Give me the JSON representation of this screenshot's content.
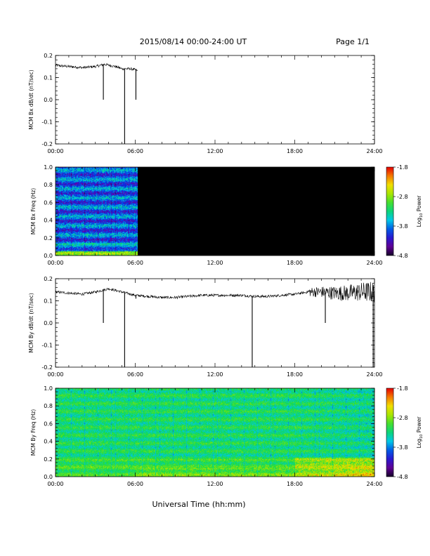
{
  "header": {
    "date_range": "2015/08/14  00:00-24:00 UT",
    "page": "Page 1/1"
  },
  "xaxis_label": "Universal Time (hh:mm)",
  "colorbar": {
    "ticks": [
      "-1.8",
      "-2.8",
      "-3.8",
      "-4.8"
    ],
    "label": "Log10 Power",
    "label_main": "Log",
    "label_sub": "10",
    "label_tail": " Power"
  },
  "chart_data": [
    {
      "id": "bx_dbdt",
      "type": "line",
      "ylabel": "MCM Bx dB/dt (nT/sec)",
      "x_ticks": [
        "00:00",
        "06:00",
        "12:00",
        "18:00",
        "24:00"
      ],
      "y_ticks": [
        "0.2",
        "0.1",
        "0.0",
        "-0.1",
        "-0.2"
      ],
      "xlim": [
        0,
        24
      ],
      "ylim": [
        -0.2,
        0.2
      ],
      "x": [
        0.0,
        1.0,
        2.0,
        3.0,
        3.7,
        4.5,
        5.0,
        5.6,
        6.0,
        6.2
      ],
      "y": [
        0.155,
        0.15,
        0.145,
        0.15,
        0.16,
        0.15,
        0.14,
        0.14,
        0.135,
        0.13
      ],
      "spikes": [
        {
          "x": 3.6,
          "y": 0.0
        },
        {
          "x": 5.2,
          "y": -0.2
        },
        {
          "x": 6.05,
          "y": 0.0
        }
      ],
      "data_end_hour": 6.2
    },
    {
      "id": "bx_spec",
      "type": "heatmap",
      "ylabel": "MCM Bx Freq (Hz)",
      "x_ticks": [
        "00:00",
        "06:00",
        "12:00",
        "18:00",
        "24:00"
      ],
      "y_ticks": [
        "1.0",
        "0.8",
        "0.6",
        "0.4",
        "0.2",
        "0.0"
      ],
      "xlim": [
        0,
        24
      ],
      "ylim": [
        0,
        1.0
      ],
      "zlim": [
        -4.8,
        -1.8
      ],
      "data_end_hour": 6.2,
      "no_data_color": "#000000"
    },
    {
      "id": "by_dbdt",
      "type": "line",
      "ylabel": "MCM By dB/dt (nT/sec)",
      "x_ticks": [
        "00:00",
        "06:00",
        "12:00",
        "18:00",
        "24:00"
      ],
      "y_ticks": [
        "0.2",
        "0.1",
        "0.0",
        "-0.1",
        "-0.2"
      ],
      "xlim": [
        0,
        24
      ],
      "ylim": [
        -0.2,
        0.2
      ],
      "x": [
        0,
        1,
        2,
        3,
        4,
        5,
        6,
        7,
        8,
        9,
        10,
        11,
        12,
        13,
        14,
        15,
        16,
        17,
        18,
        19,
        20,
        21,
        22,
        23,
        24
      ],
      "y": [
        0.14,
        0.135,
        0.13,
        0.14,
        0.155,
        0.14,
        0.125,
        0.12,
        0.115,
        0.115,
        0.12,
        0.125,
        0.125,
        0.125,
        0.125,
        0.12,
        0.12,
        0.125,
        0.13,
        0.14,
        0.14,
        0.135,
        0.135,
        0.14,
        0.14
      ],
      "noise_from_hour": 19,
      "spikes": [
        {
          "x": 3.6,
          "y": 0.0
        },
        {
          "x": 5.2,
          "y": -0.2
        },
        {
          "x": 6.05,
          "y": 0.11
        },
        {
          "x": 14.8,
          "y": -0.2
        },
        {
          "x": 20.3,
          "y": 0.0
        },
        {
          "x": 23.9,
          "y": -0.2
        }
      ]
    },
    {
      "id": "by_spec",
      "type": "heatmap",
      "ylabel": "MCM By Freq (Hz)",
      "x_ticks": [
        "00:00",
        "06:00",
        "12:00",
        "18:00",
        "24:00"
      ],
      "y_ticks": [
        "1.0",
        "0.8",
        "0.6",
        "0.4",
        "0.2",
        "0.0"
      ],
      "xlim": [
        0,
        24
      ],
      "ylim": [
        0,
        1.0
      ],
      "zlim": [
        -4.8,
        -1.8
      ],
      "data_end_hour": 24
    }
  ]
}
